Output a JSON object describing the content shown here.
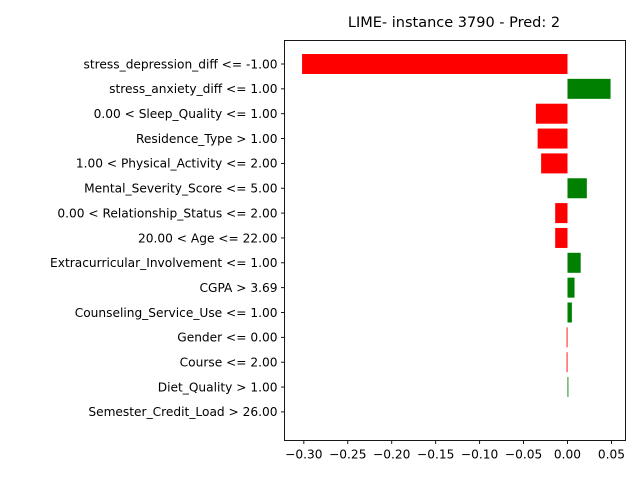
{
  "chart_data": {
    "type": "bar",
    "orientation": "horizontal",
    "title": "LIME- instance 3790 - Pred: 2",
    "xlabel": "",
    "ylabel": "",
    "xlim": [
      -0.322,
      0.066
    ],
    "xticks": [
      -0.3,
      -0.25,
      -0.2,
      -0.15,
      -0.1,
      -0.05,
      0.0,
      0.05
    ],
    "xtick_labels": [
      "−0.30",
      "−0.25",
      "−0.20",
      "−0.15",
      "−0.10",
      "−0.05",
      "0.00",
      "0.05"
    ],
    "grid": false,
    "legend": "none",
    "colors": {
      "positive": "#008000",
      "negative": "#ff0000"
    },
    "categories": [
      "stress_depression_diff <= -1.00",
      "stress_anxiety_diff <= 1.00",
      "0.00 < Sleep_Quality <= 1.00",
      "Residence_Type > 1.00",
      "1.00 < Physical_Activity <= 2.00",
      "Mental_Severity_Score <= 5.00",
      "0.00 < Relationship_Status <= 2.00",
      "20.00 < Age <= 22.00",
      "Extracurricular_Involvement <= 1.00",
      "CGPA > 3.69",
      "Counseling_Service_Use <= 1.00",
      "Gender <= 0.00",
      "Course <= 2.00",
      "Diet_Quality > 1.00",
      "Semester_Credit_Load > 26.00"
    ],
    "values": [
      -0.302,
      0.049,
      -0.036,
      -0.034,
      -0.03,
      0.022,
      -0.014,
      -0.014,
      0.015,
      0.008,
      0.005,
      -0.001,
      -0.001,
      0.001,
      0.0
    ]
  }
}
